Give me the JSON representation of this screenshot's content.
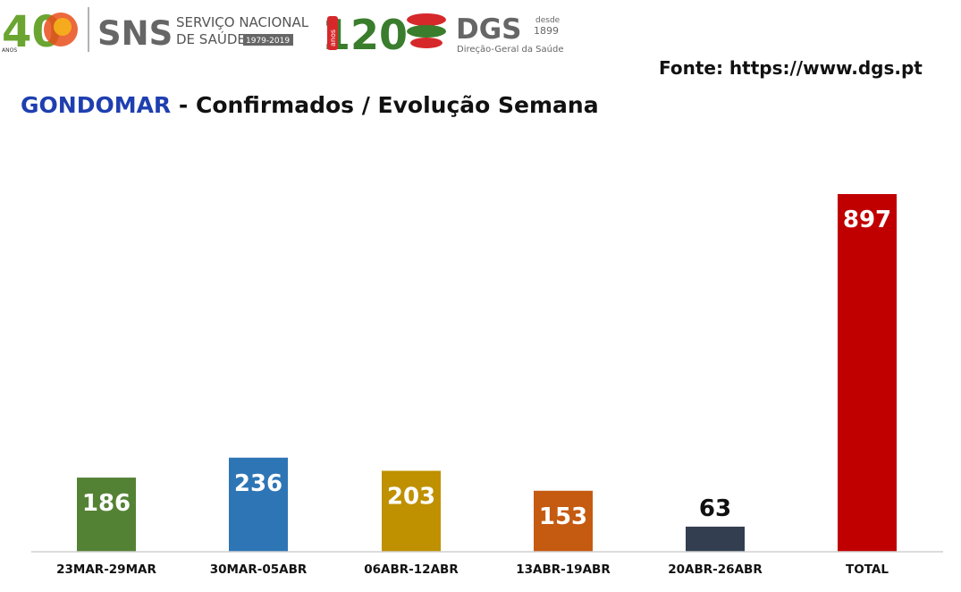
{
  "logos": {
    "anos40": {
      "number": "40",
      "caption": "ANOS"
    },
    "sns": {
      "acronym": "SNS",
      "line1": "SERVIÇO NACIONAL",
      "line2": "DE SAÚDE",
      "years": "1979-2019"
    },
    "anos120": {
      "number": "120",
      "caption": "anos"
    },
    "dgs": {
      "acronym": "DGS",
      "since_word": "desde",
      "since_year": "1899",
      "subtitle": "Direção-Geral da Saúde"
    }
  },
  "source_text": "Fonte: https://www.dgs.pt",
  "title": {
    "place": "GONDOMAR",
    "rest": " - Confirmados / Evolução Semana"
  },
  "colors": {
    "bar_green": "#548235",
    "bar_blue": "#2e75b6",
    "bar_gold": "#bf9000",
    "bar_orange": "#c55a11",
    "bar_navy": "#333f50",
    "bar_red": "#c00000",
    "title_place": "#1f3fb0"
  },
  "chart_data": {
    "type": "bar",
    "title": "GONDOMAR - Confirmados / Evolução Semana",
    "categories": [
      "23MAR-29MAR",
      "30MAR-05ABR",
      "06ABR-12ABR",
      "13ABR-19ABR",
      "20ABR-26ABR",
      "TOTAL"
    ],
    "values": [
      186,
      236,
      203,
      153,
      63,
      897
    ],
    "bar_colors": [
      "#548235",
      "#2e75b6",
      "#bf9000",
      "#c55a11",
      "#333f50",
      "#c00000"
    ],
    "label_colors": [
      "#ffffff",
      "#ffffff",
      "#ffffff",
      "#ffffff",
      "#111111",
      "#ffffff"
    ],
    "label_position": [
      "inside",
      "inside",
      "inside",
      "inside",
      "above",
      "inside"
    ],
    "ylim": [
      0,
      980
    ],
    "grid": false,
    "legend": "none"
  }
}
